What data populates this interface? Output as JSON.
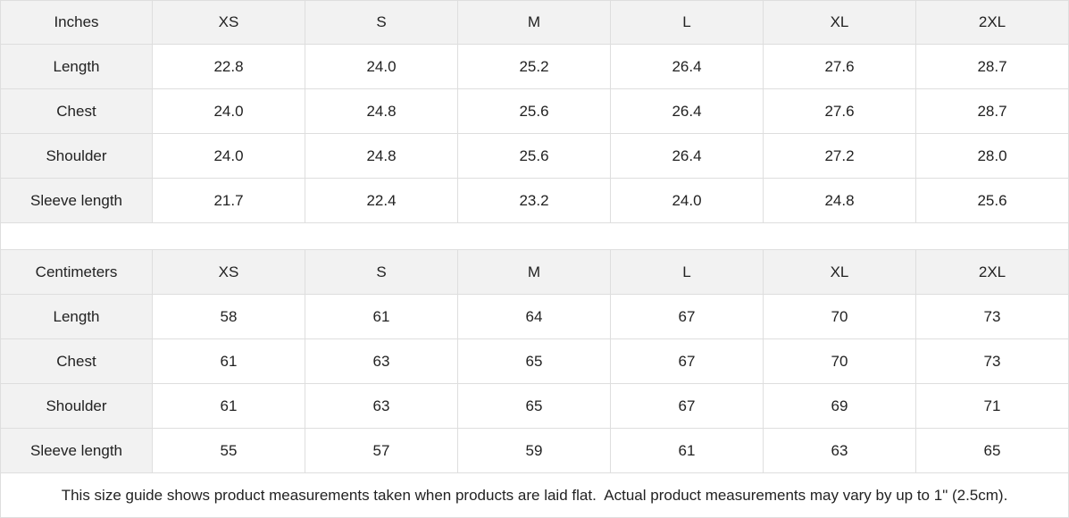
{
  "tables": [
    {
      "header": [
        "Inches",
        "XS",
        "S",
        "M",
        "L",
        "XL",
        "2XL"
      ],
      "rows": [
        [
          "Length",
          "22.8",
          "24.0",
          "25.2",
          "26.4",
          "27.6",
          "28.7"
        ],
        [
          "Chest",
          "24.0",
          "24.8",
          "25.6",
          "26.4",
          "27.6",
          "28.7"
        ],
        [
          "Shoulder",
          "24.0",
          "24.8",
          "25.6",
          "26.4",
          "27.2",
          "28.0"
        ],
        [
          "Sleeve length",
          "21.7",
          "22.4",
          "23.2",
          "24.0",
          "24.8",
          "25.6"
        ]
      ]
    },
    {
      "header": [
        "Centimeters",
        "XS",
        "S",
        "M",
        "L",
        "XL",
        "2XL"
      ],
      "rows": [
        [
          "Length",
          "58",
          "61",
          "64",
          "67",
          "70",
          "73"
        ],
        [
          "Chest",
          "61",
          "63",
          "65",
          "67",
          "70",
          "73"
        ],
        [
          "Shoulder",
          "61",
          "63",
          "65",
          "67",
          "69",
          "71"
        ],
        [
          "Sleeve length",
          "55",
          "57",
          "59",
          "61",
          "63",
          "65"
        ]
      ]
    }
  ],
  "note": "This size guide shows product measurements taken when products are laid flat.  Actual product measurements may vary by up to 1\" (2.5cm)."
}
